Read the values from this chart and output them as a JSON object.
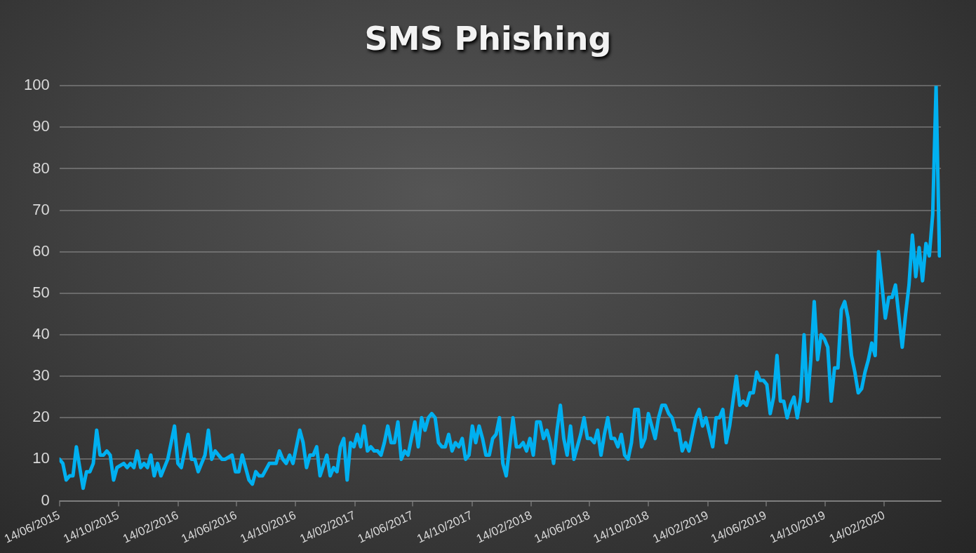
{
  "chart_data": {
    "type": "line",
    "title": "SMS Phishing",
    "x": [
      "2015-06-14",
      "2015-06-21",
      "2015-06-28",
      "2015-07-05",
      "2015-07-12",
      "2015-07-19",
      "2015-08-02",
      "2015-08-09",
      "2015-08-16",
      "2015-08-23",
      "2015-08-30",
      "2015-09-06",
      "2015-09-13",
      "2015-09-20",
      "2015-09-27",
      "2015-10-04",
      "2015-10-11",
      "2015-10-25",
      "2015-11-01",
      "2015-11-08",
      "2015-11-15",
      "2015-11-22",
      "2015-11-29",
      "2015-12-06",
      "2015-12-13",
      "2015-12-20",
      "2015-12-27",
      "2016-01-03",
      "2016-01-10",
      "2016-01-24",
      "2016-01-31",
      "2016-02-07",
      "2016-02-14",
      "2016-02-21",
      "2016-03-06",
      "2016-03-13",
      "2016-03-20",
      "2016-03-27",
      "2016-04-10",
      "2016-04-17",
      "2016-04-24",
      "2016-05-01",
      "2016-05-15",
      "2016-05-22",
      "2016-06-05",
      "2016-06-12",
      "2016-06-19",
      "2016-06-26",
      "2016-07-10",
      "2016-07-17",
      "2016-07-24",
      "2016-07-31",
      "2016-08-07",
      "2016-08-21",
      "2016-09-04",
      "2016-09-11",
      "2016-09-18",
      "2016-09-25",
      "2016-10-02",
      "2016-10-09",
      "2016-10-23",
      "2016-10-30",
      "2016-11-06",
      "2016-11-13",
      "2016-11-20",
      "2016-11-27",
      "2016-12-04",
      "2016-12-18",
      "2016-12-25",
      "2017-01-01",
      "2017-01-08",
      "2017-01-15",
      "2017-01-22",
      "2017-01-29",
      "2017-02-05",
      "2017-02-12",
      "2017-02-19",
      "2017-02-26",
      "2017-03-05",
      "2017-03-12",
      "2017-03-19",
      "2017-03-26",
      "2017-04-02",
      "2017-04-09",
      "2017-04-16",
      "2017-04-23",
      "2017-04-30",
      "2017-05-07",
      "2017-05-14",
      "2017-05-21",
      "2017-05-28",
      "2017-06-04",
      "2017-06-11",
      "2017-06-18",
      "2017-06-25",
      "2017-07-02",
      "2017-07-09",
      "2017-07-16",
      "2017-07-23",
      "2017-07-30",
      "2017-08-06",
      "2017-08-13",
      "2017-08-20",
      "2017-08-27",
      "2017-09-03",
      "2017-09-10",
      "2017-09-17",
      "2017-09-24",
      "2017-10-01",
      "2017-10-08",
      "2017-10-15",
      "2017-10-22",
      "2017-10-29",
      "2017-11-05",
      "2017-11-12",
      "2017-11-19",
      "2017-11-26",
      "2017-12-03",
      "2017-12-10",
      "2017-12-17",
      "2017-12-24",
      "2017-12-31",
      "2018-01-07",
      "2018-01-14",
      "2018-01-21",
      "2018-01-28",
      "2018-02-04",
      "2018-02-11",
      "2018-02-18",
      "2018-02-25",
      "2018-03-04",
      "2018-03-11",
      "2018-03-18",
      "2018-03-25",
      "2018-04-01",
      "2018-04-08",
      "2018-04-15",
      "2018-04-22",
      "2018-04-29",
      "2018-05-06",
      "2018-05-13",
      "2018-05-20",
      "2018-05-27",
      "2018-06-03",
      "2018-06-10",
      "2018-06-17",
      "2018-06-24",
      "2018-07-01",
      "2018-07-08",
      "2018-07-15",
      "2018-07-22",
      "2018-07-29",
      "2018-08-05",
      "2018-08-12",
      "2018-08-19",
      "2018-08-26",
      "2018-09-02",
      "2018-09-09",
      "2018-09-16",
      "2018-09-23",
      "2018-09-30",
      "2018-10-07",
      "2018-10-14",
      "2018-10-21",
      "2018-10-28",
      "2018-11-04",
      "2018-11-11",
      "2018-11-18",
      "2018-11-25",
      "2018-12-02",
      "2018-12-09",
      "2018-12-16",
      "2018-12-23",
      "2018-12-30",
      "2019-01-06",
      "2019-01-20",
      "2019-01-27",
      "2019-02-03",
      "2019-02-10",
      "2019-02-24",
      "2019-03-03",
      "2019-03-10",
      "2019-03-17",
      "2019-03-24",
      "2019-03-31",
      "2019-04-14",
      "2019-04-21",
      "2019-04-28",
      "2019-05-05",
      "2019-05-12",
      "2019-05-19",
      "2019-05-26",
      "2019-06-02",
      "2019-06-09",
      "2019-06-16",
      "2019-06-23",
      "2019-06-30",
      "2019-07-07",
      "2019-07-14",
      "2019-07-21",
      "2019-07-28",
      "2019-08-04",
      "2019-08-11",
      "2019-08-18",
      "2019-08-25",
      "2019-09-01",
      "2019-09-08",
      "2019-09-15",
      "2019-09-22",
      "2019-09-29",
      "2019-10-06",
      "2019-10-13",
      "2019-10-20",
      "2019-10-27",
      "2019-11-03",
      "2019-11-10",
      "2019-11-17",
      "2019-11-24",
      "2019-12-01",
      "2019-12-08",
      "2019-12-15",
      "2019-12-22",
      "2019-12-29",
      "2020-01-05",
      "2020-01-12",
      "2020-01-19",
      "2020-01-26",
      "2020-02-02",
      "2020-02-16",
      "2020-02-23",
      "2020-03-01",
      "2020-03-08",
      "2020-03-22",
      "2020-03-29",
      "2020-04-05",
      "2020-04-12",
      "2020-04-19",
      "2020-04-26",
      "2020-05-03",
      "2020-05-10",
      "2020-05-17",
      "2020-05-24",
      "2020-05-31",
      "2020-06-07"
    ],
    "values": [
      10,
      9,
      5,
      6,
      6,
      13,
      3,
      7,
      7,
      9,
      17,
      11,
      11,
      12,
      11,
      5,
      8,
      9,
      8,
      9,
      8,
      12,
      8,
      9,
      8,
      11,
      6,
      9,
      6,
      10,
      14,
      18,
      9,
      8,
      16,
      10,
      10,
      7,
      11,
      17,
      10,
      12,
      10,
      10,
      11,
      7,
      7,
      11,
      5,
      4,
      7,
      6,
      6,
      9,
      9,
      12,
      10,
      9,
      11,
      9,
      17,
      14,
      8,
      11,
      11,
      13,
      6,
      11,
      6,
      8,
      7,
      13,
      15,
      5,
      14,
      13,
      16,
      13,
      18,
      12,
      13,
      12,
      12,
      11,
      14,
      18,
      14,
      14,
      19,
      10,
      12,
      11,
      15,
      19,
      13,
      20,
      17,
      20,
      21,
      20,
      14,
      13,
      13,
      16,
      12,
      14,
      13,
      15,
      10,
      11,
      18,
      14,
      18,
      15,
      11,
      11,
      15,
      16,
      20,
      9,
      6,
      13,
      20,
      13,
      13,
      14,
      12,
      15,
      11,
      19,
      19,
      15,
      17,
      14,
      9,
      17,
      23,
      15,
      11,
      18,
      10,
      13,
      16,
      20,
      15,
      15,
      14,
      17,
      11,
      16,
      20,
      15,
      15,
      13,
      16,
      11,
      10,
      14,
      22,
      22,
      13,
      15,
      21,
      18,
      15,
      20,
      23,
      23,
      21,
      20,
      17,
      17,
      12,
      14,
      12,
      20,
      22,
      18,
      20,
      13,
      20,
      20,
      22,
      14,
      18,
      30,
      23,
      24,
      23,
      26,
      26,
      31,
      29,
      29,
      28,
      21,
      25,
      35,
      24,
      24,
      20,
      23,
      25,
      20,
      25,
      40,
      24,
      34,
      48,
      34,
      40,
      39,
      37,
      24,
      32,
      32,
      46,
      48,
      44,
      35,
      31,
      26,
      27,
      31,
      34,
      38,
      35,
      60,
      44,
      49,
      49,
      52,
      37,
      45,
      52,
      64,
      54,
      61,
      53,
      62,
      59,
      69,
      100,
      59
    ],
    "color": "#00b0f0",
    "xlim": [
      "2015-06-14",
      "2020-06-10"
    ],
    "xticks": [
      {
        "value": "2015-06-14",
        "label": "14/06/2015"
      },
      {
        "value": "2015-10-14",
        "label": "14/10/2015"
      },
      {
        "value": "2016-02-14",
        "label": "14/02/2016"
      },
      {
        "value": "2016-06-14",
        "label": "14/06/2016"
      },
      {
        "value": "2016-10-14",
        "label": "14/10/2016"
      },
      {
        "value": "2017-02-14",
        "label": "14/02/2017"
      },
      {
        "value": "2017-06-14",
        "label": "14/06/2017"
      },
      {
        "value": "2017-10-14",
        "label": "14/10/2017"
      },
      {
        "value": "2018-02-14",
        "label": "14/02/2018"
      },
      {
        "value": "2018-06-14",
        "label": "14/06/2018"
      },
      {
        "value": "2018-10-14",
        "label": "14/10/2018"
      },
      {
        "value": "2019-02-14",
        "label": "14/02/2019"
      },
      {
        "value": "2019-06-14",
        "label": "14/06/2019"
      },
      {
        "value": "2019-10-14",
        "label": "14/10/2019"
      },
      {
        "value": "2020-02-14",
        "label": "14/02/2020"
      }
    ],
    "ylim": [
      0,
      100
    ],
    "yticks": [
      0,
      10,
      20,
      30,
      40,
      50,
      60,
      70,
      80,
      90,
      100
    ],
    "grid": "y",
    "marker": "none",
    "line_style": "solid"
  }
}
